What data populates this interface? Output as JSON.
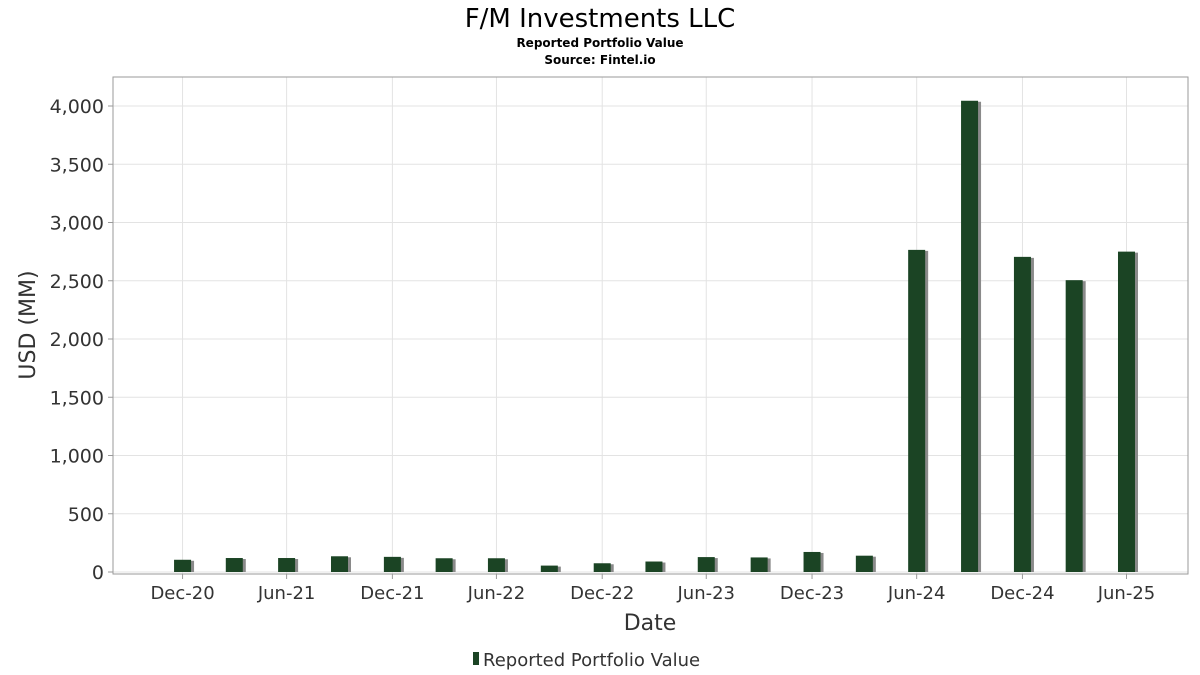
{
  "chart_data": {
    "type": "bar",
    "title": "F/M Investments LLC",
    "subtitle": "Reported Portfolio Value",
    "source": "Source: Fintel.io",
    "xlabel": "Date",
    "ylabel": "USD (MM)",
    "ylim": [
      0,
      4250
    ],
    "yticks": [
      0,
      500,
      1000,
      1500,
      2000,
      2500,
      3000,
      3500,
      4000
    ],
    "ytick_labels": [
      "0",
      "500",
      "1,000",
      "1,500",
      "2,000",
      "2,500",
      "3,000",
      "3,500",
      "4,000"
    ],
    "xlim": [
      "2020-09-01",
      "2025-10-15"
    ],
    "xticks": [
      {
        "date": "2020-12-31",
        "label": "Dec-20"
      },
      {
        "date": "2021-06-30",
        "label": "Jun-21"
      },
      {
        "date": "2021-12-31",
        "label": "Dec-21"
      },
      {
        "date": "2022-06-30",
        "label": "Jun-22"
      },
      {
        "date": "2022-12-31",
        "label": "Dec-22"
      },
      {
        "date": "2023-06-30",
        "label": "Jun-23"
      },
      {
        "date": "2023-12-31",
        "label": "Dec-23"
      },
      {
        "date": "2024-06-30",
        "label": "Jun-24"
      },
      {
        "date": "2024-12-31",
        "label": "Dec-24"
      },
      {
        "date": "2025-06-30",
        "label": "Jun-25"
      }
    ],
    "grid": true,
    "legend_position": "bottom-center",
    "series": [
      {
        "name": "Reported Portfolio Value",
        "color": "#1b4424",
        "shadow_color": "#8a8a8a",
        "points": [
          {
            "x": "2020-12-31",
            "y": 105
          },
          {
            "x": "2021-03-31",
            "y": 120
          },
          {
            "x": "2021-06-30",
            "y": 120
          },
          {
            "x": "2021-09-30",
            "y": 135
          },
          {
            "x": "2021-12-31",
            "y": 130
          },
          {
            "x": "2022-03-31",
            "y": 118
          },
          {
            "x": "2022-06-30",
            "y": 118
          },
          {
            "x": "2022-09-30",
            "y": 55
          },
          {
            "x": "2022-12-31",
            "y": 75
          },
          {
            "x": "2023-03-31",
            "y": 90
          },
          {
            "x": "2023-06-30",
            "y": 128
          },
          {
            "x": "2023-09-30",
            "y": 125
          },
          {
            "x": "2023-12-31",
            "y": 172
          },
          {
            "x": "2024-03-31",
            "y": 140
          },
          {
            "x": "2024-06-30",
            "y": 2765
          },
          {
            "x": "2024-09-30",
            "y": 4045
          },
          {
            "x": "2024-12-31",
            "y": 2705
          },
          {
            "x": "2025-03-31",
            "y": 2505
          },
          {
            "x": "2025-06-30",
            "y": 2750
          }
        ]
      }
    ]
  }
}
